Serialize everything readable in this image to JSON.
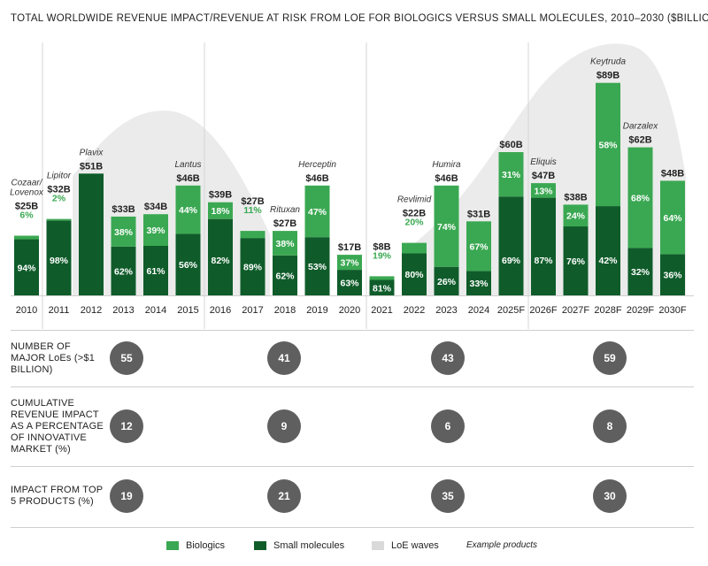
{
  "title": "TOTAL WORLDWIDE REVENUE IMPACT/REVENUE AT RISK FROM LOE FOR BIOLOGICS VERSUS SMALL MOLECULES, 2010–2030 ($BILLIONS)",
  "colors": {
    "biologics": "#3aa852",
    "small_molecules": "#0f5c2a",
    "loe_waves": "#ebebeb",
    "bio_label": "#3aa852",
    "circle": "#5f5f5f"
  },
  "chart_data": {
    "type": "bar",
    "stacked": true,
    "categories": [
      "2010",
      "2011",
      "2012",
      "2013",
      "2014",
      "2015",
      "2016",
      "2017",
      "2018",
      "2019",
      "2020",
      "2021",
      "2022",
      "2023",
      "2024",
      "2025F",
      "2026F",
      "2027F",
      "2028F",
      "2029F",
      "2030F"
    ],
    "totals": [
      25,
      32,
      51,
      33,
      34,
      46,
      39,
      27,
      27,
      46,
      17,
      8,
      22,
      46,
      31,
      60,
      47,
      38,
      89,
      62,
      48
    ],
    "total_labels": [
      "$25B",
      "$32B",
      "$51B",
      "$33B",
      "$34B",
      "$46B",
      "$39B",
      "$27B",
      "$27B",
      "$46B",
      "$17B",
      "$8B",
      "$22B",
      "$46B",
      "$31B",
      "$60B",
      "$47B",
      "$38B",
      "$89B",
      "$62B",
      "$48B"
    ],
    "series": [
      {
        "name": "Small molecules",
        "share_labels": [
          "94%",
          "98%",
          "",
          "62%",
          "61%",
          "56%",
          "82%",
          "89%",
          "62%",
          "53%",
          "63%",
          "81%",
          "80%",
          "26%",
          "33%",
          "69%",
          "87%",
          "76%",
          "42%",
          "32%",
          "36%"
        ],
        "shares": [
          94,
          98,
          100,
          62,
          61,
          56,
          82,
          89,
          62,
          53,
          63,
          81,
          80,
          26,
          33,
          69,
          87,
          76,
          42,
          32,
          36
        ]
      },
      {
        "name": "Biologics",
        "share_labels": [
          "6%",
          "2%",
          "",
          "38%",
          "39%",
          "44%",
          "18%",
          "11%",
          "38%",
          "47%",
          "37%",
          "19%",
          "20%",
          "74%",
          "67%",
          "31%",
          "13%",
          "24%",
          "58%",
          "68%",
          "64%"
        ],
        "shares": [
          6,
          2,
          0,
          38,
          39,
          44,
          18,
          11,
          38,
          47,
          37,
          19,
          20,
          74,
          67,
          31,
          13,
          24,
          58,
          68,
          64
        ]
      }
    ],
    "example_products": [
      {
        "year": "2010",
        "name": "Cozaar/ Lovenox"
      },
      {
        "year": "2011",
        "name": "Lipitor"
      },
      {
        "year": "2012",
        "name": "Plavix"
      },
      {
        "year": "2015",
        "name": "Lantus"
      },
      {
        "year": "2018",
        "name": "Rituxan"
      },
      {
        "year": "2019",
        "name": "Herceptin"
      },
      {
        "year": "2022",
        "name": "Revlimid"
      },
      {
        "year": "2023",
        "name": "Humira"
      },
      {
        "year": "2026F",
        "name": "Eliquis"
      },
      {
        "year": "2028F",
        "name": "Keytruda"
      },
      {
        "year": "2029F",
        "name": "Darzalex"
      }
    ],
    "legend": [
      "Biologics",
      "Small molecules",
      "LoE waves",
      "Example products"
    ]
  },
  "table": {
    "rows": [
      {
        "label": "NUMBER OF MAJOR LoEs (>$1 BILLION)",
        "values": [
          "55",
          "41",
          "43",
          "59"
        ]
      },
      {
        "label": "CUMULATIVE REVENUE IMPACT AS A PERCENTAGE OF INNOVATIVE MARKET (%)",
        "values": [
          "12",
          "9",
          "6",
          "8"
        ]
      },
      {
        "label": "IMPACT FROM TOP 5 PRODUCTS (%)",
        "values": [
          "19",
          "21",
          "35",
          "30"
        ]
      }
    ]
  }
}
